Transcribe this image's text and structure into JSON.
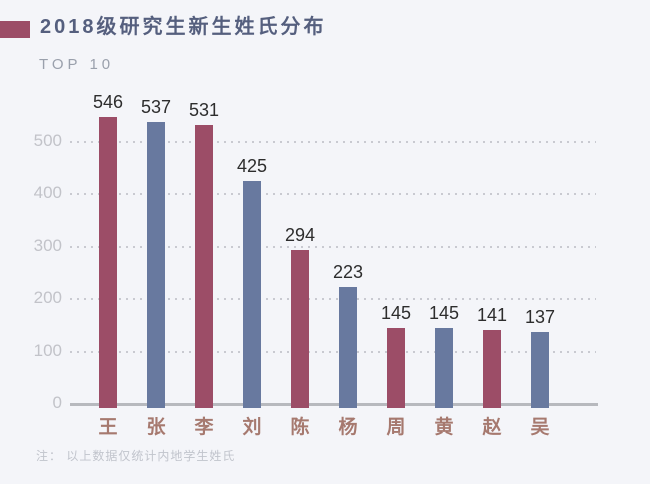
{
  "header": {
    "title": "2018级研究生新生姓氏分布",
    "subtitle": "TOP 10"
  },
  "footer": {
    "note": "注： 以上数据仅统计内地学生姓氏"
  },
  "chart_data": {
    "type": "bar",
    "title": "2018级研究生新生姓氏分布",
    "subtitle": "TOP 10",
    "categories": [
      "王",
      "张",
      "李",
      "刘",
      "陈",
      "杨",
      "周",
      "黄",
      "赵",
      "吴"
    ],
    "values": [
      546,
      537,
      531,
      425,
      294,
      223,
      145,
      145,
      141,
      137
    ],
    "y_ticks": [
      500,
      400,
      300,
      200,
      100,
      0
    ],
    "ylim": [
      0,
      560
    ],
    "xlabel": "",
    "ylabel": "",
    "grid": "horizontal-dotted",
    "legend": "none",
    "bar_color_pattern": "alternating",
    "note": "注： 以上数据仅统计内地学生姓氏",
    "palette": {
      "background": "#f4f5f9",
      "bar_odd": "#9c4d67",
      "bar_even": "#68799f",
      "title_marker": "#9c4d67",
      "title": "#555f7e",
      "subtitle": "#9aa0ac",
      "value_label": "#2d2d2d",
      "x_label": "#a6796f",
      "y_label": "#c2c3c9",
      "gridline": "#c9cad1",
      "axis": "#b7b9be",
      "note": "#c1c4cc"
    }
  }
}
